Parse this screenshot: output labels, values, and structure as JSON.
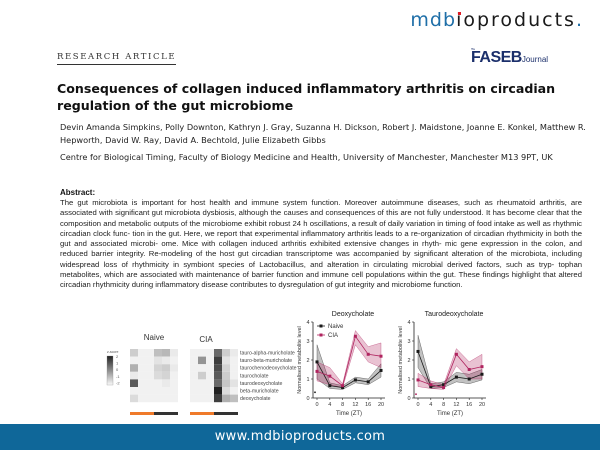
{
  "header": {
    "logo_prefix": "mdb",
    "logo_i": "i",
    "logo_rest": "oproducts",
    "logo_dot": ".",
    "section_label": "RESEARCH ARTICLE",
    "journal_the": "The",
    "journal_name": "FASEB",
    "journal_suffix": "Journal"
  },
  "article": {
    "title": "Consequences of collagen induced inflammatory arthritis on circadian regulation of the gut microbiome",
    "authors": "Devin Amanda Simpkins, Polly Downton, Kathryn J. Gray, Suzanna H. Dickson, Robert J. Maidstone, Joanne E. Konkel, Matthew R. Hepworth, David W. Ray, David A. Bechtold, Julie Elizabeth Gibbs",
    "affiliation": "Centre for Biological Timing, Faculty of Biology Medicine and Health, University of Manchester, Manchester M13 9PT, UK",
    "abstract_heading": "Abstract:",
    "abstract": "The gut microbiota is important for host health and immune system function. Moreover autoimmune diseases, such as rheumatoid arthritis, are associated with significant gut microbiota dysbiosis, although the causes and consequences of this are not fully understood. It has become clear that the composition and metabolic outputs of the microbiome exhibit robust 24 h oscillations, a result of daily variation in timing of food intake as well as rhythmic circadian clock func- tion in the gut. Here, we report that experimental inflammatory arthritis leads to a re-organization of circadian rhythmicity in both the gut and associated microbi- ome. Mice with collagen induced arthritis exhibited extensive changes in rhyth- mic gene expression in the colon, and reduced barrier integrity. Re-modeling of the host gut circadian transcriptome was accompanied by significant alteration of the microbiota, including widespread loss of rhythmicity in symbiont species of Lactobacillus, and alteration in circulating microbial derived factors, such as tryp- tophan metabolites, which are associated with maintenance of barrier function and immune cell populations within the gut. These findings highlight that altered circadian rhythmicity during inflammatory disease contributes to dysregulation of gut integrity and microbiome function."
  },
  "figure": {
    "heatmap": {
      "group_labels": [
        "Naive",
        "CIA"
      ],
      "scale_label": "z-score",
      "scale_ticks": [
        "2",
        "1",
        "0",
        "-1",
        "-2"
      ],
      "rows": [
        "tauro-alpha-muricholate",
        "tauro-beta-muricholate",
        "taurochenodeoxycholate",
        "taurocholate",
        "taurodeoxycholate",
        "beta-muricholate",
        "deoxycholate"
      ],
      "values": [
        [
          0.6,
          0.1,
          0.1,
          0.8,
          0.9,
          0.2,
          0.1,
          0.1,
          0.1,
          2.0,
          0.6,
          0.2
        ],
        [
          0.1,
          0.1,
          0.1,
          0.3,
          0.2,
          0.1,
          0.1,
          1.4,
          0.1,
          2.6,
          0.3,
          0.1
        ],
        [
          1.0,
          0.1,
          0.1,
          0.5,
          0.6,
          0.2,
          0.1,
          0.1,
          0.1,
          2.4,
          0.5,
          0.1
        ],
        [
          0.2,
          0.1,
          0.1,
          0.4,
          0.5,
          0.1,
          0.1,
          0.6,
          0.1,
          2.2,
          0.6,
          0.1
        ],
        [
          2.2,
          0.1,
          0.1,
          0.1,
          0.2,
          0.1,
          0.1,
          0.1,
          0.1,
          2.0,
          0.7,
          0.3
        ],
        [
          0.1,
          0.1,
          0.1,
          0.1,
          0.1,
          0.1,
          0.1,
          0.1,
          0.1,
          3.0,
          0.4,
          0.1
        ],
        [
          0.4,
          0.1,
          0.1,
          0.1,
          0.1,
          0.1,
          0.1,
          0.1,
          0.1,
          2.6,
          1.0,
          0.8
        ]
      ],
      "bar_colors": [
        "#ef7a2a",
        "#333333"
      ]
    }
  },
  "chart_data": [
    {
      "type": "line",
      "title": "Deoxycholate",
      "xlabel": "Time (ZT)",
      "ylabel": "Normalised metabolite level",
      "x": [
        0,
        4,
        8,
        12,
        16,
        20
      ],
      "ylim": [
        0,
        4
      ],
      "yticks": [
        0,
        1,
        2,
        3,
        4
      ],
      "legend": [
        "Naive",
        "CIA"
      ],
      "series": [
        {
          "name": "Naive",
          "color": "#1a1a1a",
          "values": [
            1.9,
            0.65,
            0.55,
            0.95,
            0.85,
            1.45
          ],
          "lower": [
            1.0,
            0.5,
            0.45,
            0.8,
            0.7,
            1.1
          ],
          "upper": [
            2.8,
            0.8,
            0.65,
            1.1,
            1.0,
            1.8
          ]
        },
        {
          "name": "CIA",
          "color": "#b0245f",
          "values": [
            1.4,
            1.15,
            0.65,
            3.25,
            2.3,
            2.2
          ],
          "lower": [
            0.9,
            0.7,
            0.55,
            2.8,
            1.9,
            1.6
          ],
          "upper": [
            1.9,
            1.6,
            0.75,
            3.55,
            2.7,
            2.9
          ]
        }
      ],
      "annotations": [
        "outlier point at ZT0 ~0.3"
      ]
    },
    {
      "type": "line",
      "title": "Taurodeoxycholate",
      "xlabel": "Time (ZT)",
      "ylabel": "Normalised metabolite level",
      "x": [
        0,
        4,
        8,
        12,
        16,
        20
      ],
      "ylim": [
        0,
        4
      ],
      "yticks": [
        0,
        1,
        2,
        3,
        4
      ],
      "series": [
        {
          "name": "Naive",
          "color": "#1a1a1a",
          "values": [
            2.45,
            0.6,
            0.7,
            1.1,
            1.0,
            1.25
          ],
          "lower": [
            1.6,
            0.5,
            0.55,
            0.85,
            0.75,
            0.95
          ],
          "upper": [
            3.3,
            0.75,
            0.85,
            1.35,
            1.25,
            1.5
          ]
        },
        {
          "name": "CIA",
          "color": "#b0245f",
          "values": [
            0.95,
            0.7,
            0.55,
            2.3,
            1.5,
            1.65
          ],
          "lower": [
            0.6,
            0.5,
            0.45,
            1.7,
            1.0,
            1.0
          ],
          "upper": [
            1.3,
            0.9,
            0.7,
            2.6,
            1.9,
            2.3
          ]
        }
      ],
      "annotations": [
        "outlier point at ZT0 ~0.2"
      ]
    }
  ],
  "footer": {
    "url": "www.mdbioproducts.com"
  }
}
